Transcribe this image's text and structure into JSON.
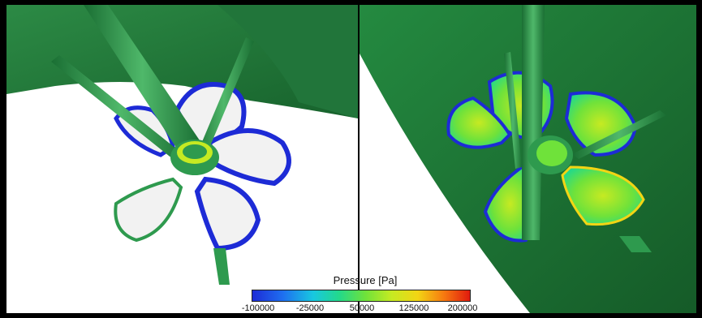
{
  "legend": {
    "title": "Pressure [Pa]",
    "ticks": [
      "-100000",
      "-25000",
      "50000",
      "125000",
      "200000"
    ]
  },
  "colors": {
    "hull_green": "#1f7a3a",
    "shaft_green": "#2e9a4e",
    "blade_white": "#f2f2f2",
    "low_pressure_blue": "#1d2bd6",
    "high_pressure_red": "#e01a0e"
  }
}
